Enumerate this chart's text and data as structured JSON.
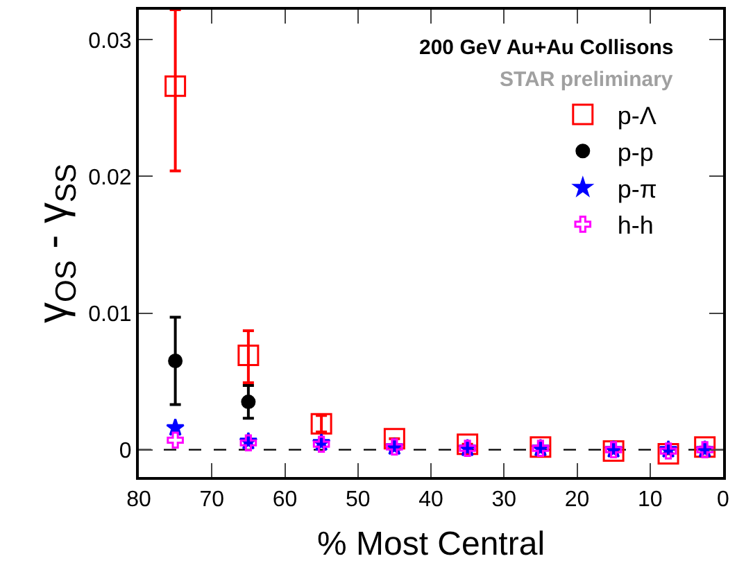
{
  "chart_data": {
    "type": "scatter",
    "xlabel": "% Most Central",
    "ylabel": "γ$_{OS}$ - γ$_{SS}$",
    "annotations": [
      "200 GeV Au+Au Collisons",
      "STAR preliminary"
    ],
    "x": [
      75,
      65,
      55,
      45,
      35,
      25,
      15,
      7.5,
      2.5
    ],
    "series": [
      {
        "name": "p-Λ",
        "color": "#ff0000",
        "marker": "square-open",
        "values": [
          0.0266,
          0.0069,
          0.0019,
          0.0008,
          0.0004,
          0.0002,
          -0.0001,
          -0.0003,
          0.0002
        ],
        "errors": [
          [
            0.0204,
            0.0322
          ],
          [
            0.0049,
            0.0087
          ],
          [
            0.0013,
            0.0025
          ],
          null,
          null,
          null,
          null,
          null,
          null
        ]
      },
      {
        "name": "p-p",
        "color": "#000000",
        "marker": "circle",
        "values": [
          0.0065,
          0.0035,
          null,
          null,
          null,
          null,
          null,
          null,
          null
        ],
        "errors": [
          [
            0.0033,
            0.0097
          ],
          [
            0.0023,
            0.0047
          ],
          null,
          null,
          null,
          null,
          null,
          null,
          null
        ]
      },
      {
        "name": "p-π",
        "color": "#0000ff",
        "marker": "star",
        "values": [
          0.0016,
          0.0006,
          0.0005,
          0.0002,
          0.0001,
          0.0001,
          0.0,
          0.0,
          0.0
        ]
      },
      {
        "name": "h-h",
        "color": "#ff00ff",
        "marker": "cross-open",
        "values": [
          0.0007,
          0.0005,
          0.0004,
          0.0002,
          0.0001,
          0.0001,
          0.0,
          -0.0001,
          0.0
        ]
      }
    ],
    "xlim": [
      80,
      0
    ],
    "xticks": [
      80,
      70,
      60,
      50,
      40,
      30,
      20,
      10,
      0
    ],
    "ylim": [
      -0.002,
      0.0322
    ],
    "yticks": [
      0,
      0.01,
      0.02,
      0.03
    ],
    "ref_lines": [
      {
        "axis": "y",
        "value": 0,
        "line_style": "dashed",
        "color": "#000000"
      }
    ],
    "grid": false,
    "legend": "top right"
  }
}
